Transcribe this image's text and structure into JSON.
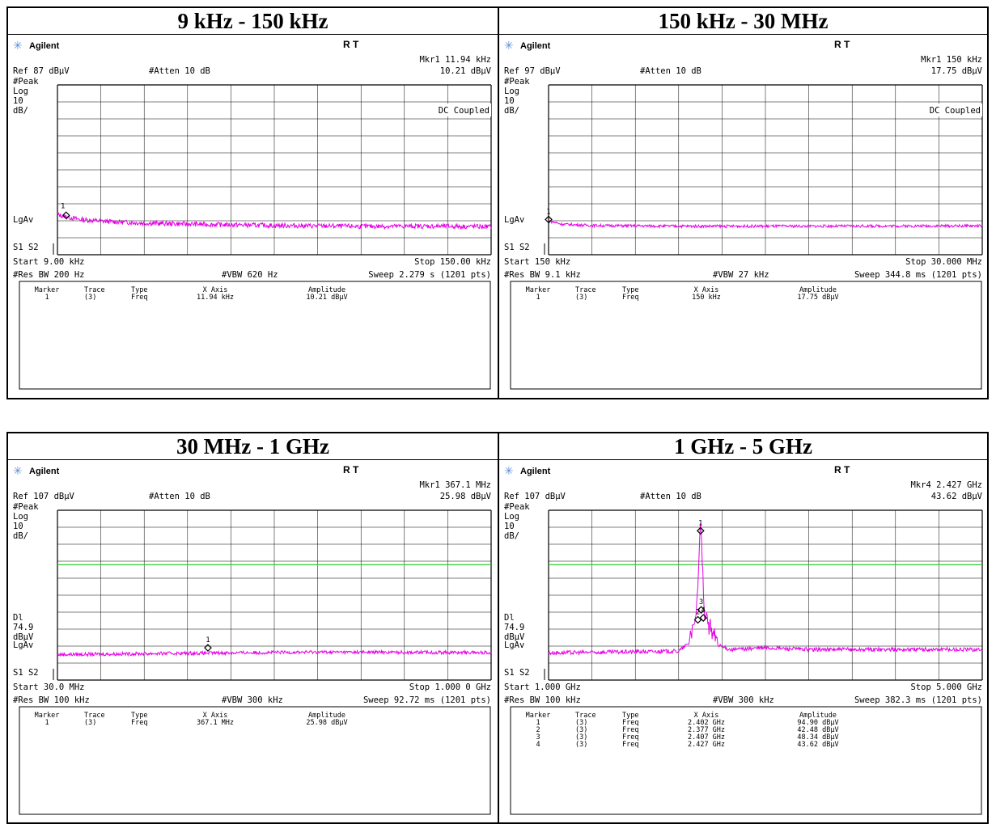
{
  "chart_data": [
    {
      "type": "line",
      "title": "9 kHz - 150 kHz",
      "brand": "Agilent",
      "status": "R  T",
      "marker_readout": "Mkr1  11.94 kHz",
      "marker_readout_amp": "10.21 dBµV",
      "ref": "Ref 87 dBµV",
      "atten": "#Atten 10 dB",
      "left_labels": [
        "#Peak",
        "Log",
        "10",
        "dB/"
      ],
      "dl_labels": [],
      "coupling": "DC Coupled",
      "lgav": "LgAv",
      "s1s2": "S1  S2",
      "start": "Start 9.00 kHz",
      "stop": "Stop 150.00 kHz",
      "res_bw": "#Res BW 200 Hz",
      "vbw": "#VBW 620 Hz",
      "sweep": "Sweep 2.279 s (1201 pts)",
      "table_headers": [
        "Marker",
        "Trace",
        "Type",
        "X Axis",
        "Amplitude"
      ],
      "markers": [
        {
          "num": "1",
          "trace": "(3)",
          "type": "Freq",
          "x_axis": "11.94 kHz",
          "amplitude": "10.21 dBµV"
        }
      ],
      "x_range_hz": [
        9000,
        150000
      ],
      "ref_level_dbuv": 87,
      "db_per_div": 10,
      "display_line_dbuv": null,
      "trace_profile": [
        {
          "x": 0.0,
          "y": 10.5
        },
        {
          "x": 0.05,
          "y": 7.8
        },
        {
          "x": 0.1,
          "y": 6.8
        },
        {
          "x": 0.2,
          "y": 5.6
        },
        {
          "x": 0.35,
          "y": 4.8
        },
        {
          "x": 0.5,
          "y": 4.2
        },
        {
          "x": 0.7,
          "y": 3.7
        },
        {
          "x": 0.85,
          "y": 3.8
        },
        {
          "x": 1.0,
          "y": 3.5
        }
      ],
      "trace_noise": 0.7,
      "marker_points": [
        {
          "label": "1",
          "x": 0.02,
          "y": 10.21,
          "label_side": "left"
        }
      ]
    },
    {
      "type": "line",
      "title": "150 kHz - 30 MHz",
      "brand": "Agilent",
      "status": "R  T",
      "marker_readout": "Mkr1  150 kHz",
      "marker_readout_amp": "17.75 dBµV",
      "ref": "Ref 97 dBµV",
      "atten": "#Atten 10 dB",
      "left_labels": [
        "#Peak",
        "Log",
        "10",
        "dB/"
      ],
      "dl_labels": [],
      "coupling": "DC Coupled",
      "lgav": "LgAv",
      "s1s2": "S1  S2",
      "start": "Start 150 kHz",
      "stop": "Stop 30.000 MHz",
      "res_bw": "#Res BW 9.1 kHz",
      "vbw": "#VBW 27 kHz",
      "sweep": "Sweep 344.8 ms (1201 pts)",
      "table_headers": [
        "Marker",
        "Trace",
        "Type",
        "X Axis",
        "Amplitude"
      ],
      "markers": [
        {
          "num": "1",
          "trace": "(3)",
          "type": "Freq",
          "x_axis": "150 kHz",
          "amplitude": "17.75 dBµV"
        }
      ],
      "x_range_hz": [
        150000,
        30000000
      ],
      "ref_level_dbuv": 97,
      "db_per_div": 10,
      "display_line_dbuv": null,
      "trace_profile": [
        {
          "x": 0.0,
          "y": 17.0
        },
        {
          "x": 0.03,
          "y": 15.0
        },
        {
          "x": 0.1,
          "y": 14.2
        },
        {
          "x": 0.3,
          "y": 13.8
        },
        {
          "x": 0.6,
          "y": 13.8
        },
        {
          "x": 1.0,
          "y": 14.0
        }
      ],
      "trace_noise": 0.4,
      "marker_points": [
        {
          "label": "1",
          "x": 0.0,
          "y": 17.75,
          "label_side": "above"
        }
      ]
    },
    {
      "type": "line",
      "title": "30 MHz - 1 GHz",
      "brand": "Agilent",
      "status": "R  T",
      "marker_readout": "Mkr1  367.1 MHz",
      "marker_readout_amp": "25.98 dBµV",
      "ref": "Ref 107 dBµV",
      "atten": "#Atten 10 dB",
      "left_labels": [
        "#Peak",
        "Log",
        "10",
        "dB/"
      ],
      "dl_labels": [
        "Dl",
        "74.9",
        "dBµV"
      ],
      "coupling": "",
      "lgav": "LgAv",
      "s1s2": "S1  S2",
      "start": "Start 30.0 MHz",
      "stop": "Stop 1.000 0 GHz",
      "res_bw": "#Res BW 100 kHz",
      "vbw": "#VBW 300 kHz",
      "sweep": "Sweep 92.72 ms (1201 pts)",
      "table_headers": [
        "Marker",
        "Trace",
        "Type",
        "X Axis",
        "Amplitude"
      ],
      "markers": [
        {
          "num": "1",
          "trace": "(3)",
          "type": "Freq",
          "x_axis": "367.1 MHz",
          "amplitude": "25.98 dBµV"
        }
      ],
      "x_range_hz": [
        30000000,
        1000000000
      ],
      "ref_level_dbuv": 107,
      "db_per_div": 10,
      "display_line_dbuv": 74.9,
      "trace_profile": [
        {
          "x": 0.0,
          "y": 22.0
        },
        {
          "x": 0.3,
          "y": 22.8
        },
        {
          "x": 0.6,
          "y": 23.5
        },
        {
          "x": 1.0,
          "y": 23.2
        }
      ],
      "trace_noise": 0.5,
      "marker_points": [
        {
          "label": "1",
          "x": 0.347,
          "y": 25.98,
          "label_side": "above"
        }
      ]
    },
    {
      "type": "line",
      "title": "1 GHz - 5 GHz",
      "brand": "Agilent",
      "status": "R  T",
      "marker_readout": "Mkr4  2.427 GHz",
      "marker_readout_amp": "43.62 dBµV",
      "ref": "Ref 107 dBµV",
      "atten": "#Atten 10 dB",
      "left_labels": [
        "#Peak",
        "Log",
        "10",
        "dB/"
      ],
      "dl_labels": [
        "Dl",
        "74.9",
        "dBµV"
      ],
      "coupling": "",
      "lgav": "LgAv",
      "s1s2": "S1  S2",
      "start": "Start 1.000 GHz",
      "stop": "Stop 5.000 GHz",
      "res_bw": "#Res BW 100 kHz",
      "vbw": "#VBW 300 kHz",
      "sweep": "Sweep 382.3 ms (1201 pts)",
      "table_headers": [
        "Marker",
        "Trace",
        "Type",
        "X Axis",
        "Amplitude"
      ],
      "markers": [
        {
          "num": "1",
          "trace": "(3)",
          "type": "Freq",
          "x_axis": "2.402 GHz",
          "amplitude": "94.90 dBµV"
        },
        {
          "num": "2",
          "trace": "(3)",
          "type": "Freq",
          "x_axis": "2.377 GHz",
          "amplitude": "42.48 dBµV"
        },
        {
          "num": "3",
          "trace": "(3)",
          "type": "Freq",
          "x_axis": "2.407 GHz",
          "amplitude": "48.34 dBµV"
        },
        {
          "num": "4",
          "trace": "(3)",
          "type": "Freq",
          "x_axis": "2.427 GHz",
          "amplitude": "43.62 dBµV"
        }
      ],
      "x_range_hz": [
        1000000000,
        5000000000
      ],
      "ref_level_dbuv": 107,
      "db_per_div": 10,
      "display_line_dbuv": 74.9,
      "trace_profile": [
        {
          "x": 0.0,
          "y": 23.0
        },
        {
          "x": 0.3,
          "y": 24.0
        },
        {
          "x": 0.33,
          "y": 30.0
        },
        {
          "x": 0.34,
          "y": 36.0
        },
        {
          "x": 0.3505,
          "y": 94.9
        },
        {
          "x": 0.36,
          "y": 40.0
        },
        {
          "x": 0.38,
          "y": 28.0
        },
        {
          "x": 0.42,
          "y": 25.0
        },
        {
          "x": 0.5,
          "y": 26.0
        },
        {
          "x": 0.6,
          "y": 25.0
        },
        {
          "x": 1.0,
          "y": 25.0
        }
      ],
      "trace_noise": 0.6,
      "marker_points": [
        {
          "label": "1",
          "x": 0.3505,
          "y": 94.9,
          "label_side": "above"
        },
        {
          "label": "2",
          "x": 0.3443,
          "y": 42.48,
          "label_side": "above"
        },
        {
          "label": "3",
          "x": 0.3518,
          "y": 48.34,
          "label_side": "above"
        },
        {
          "label": "4",
          "x": 0.3568,
          "y": 43.62,
          "label_side": "above"
        }
      ]
    }
  ],
  "colors": {
    "trace": "#e600e6",
    "display_line": "#33cc33",
    "grid": "#000000",
    "brand_star": "#5b8fd8"
  }
}
